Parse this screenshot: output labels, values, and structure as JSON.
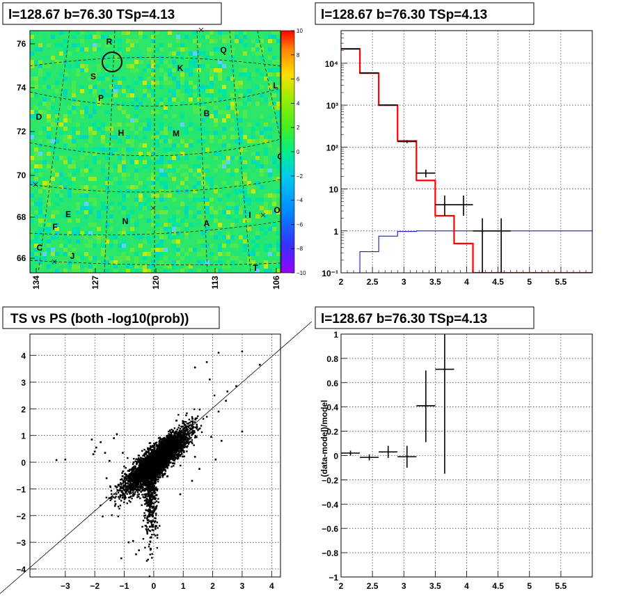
{
  "colors": {
    "hist": "#ff0000",
    "model": "#0000cc",
    "ink": "#000000"
  },
  "chart_data": [
    {
      "type": "heatmap",
      "title": "l=128.67 b=76.30 TSp=4.13",
      "xticks": [
        "134",
        "127",
        "120",
        "113",
        "106"
      ],
      "yticks": [
        "76",
        "74",
        "72",
        "70",
        "68",
        "66"
      ],
      "colorbar_ticks": [
        "10",
        "8",
        "6",
        "4",
        "2",
        "0",
        "−2",
        "−4",
        "−6",
        "−8",
        "−10"
      ],
      "zlim": [
        -10,
        10
      ],
      "source_labels": [
        "R",
        "S",
        "P",
        "K",
        "Q",
        "L",
        "D",
        "B",
        "H",
        "M",
        "G",
        "E",
        "F",
        "N",
        "A",
        "I",
        "O",
        "C",
        "J",
        "T"
      ]
    },
    {
      "type": "line",
      "title": "l=128.67 b=76.30 TSp=4.13",
      "log_y": true,
      "xlim": [
        2,
        6
      ],
      "ylim": [
        0.1,
        60000
      ],
      "xticks": [
        "2",
        "2.5",
        "3",
        "3.5",
        "4",
        "4.5",
        "5",
        "5.5"
      ],
      "yticks": [
        "10⁻¹",
        "1",
        "10",
        "10²",
        "10³",
        "10⁴"
      ],
      "series": [
        {
          "kind": "step",
          "x_edges": [
            2,
            2.3,
            2.6,
            2.9,
            3.2,
            3.5,
            3.8,
            4.1,
            4.4,
            4.7,
            6
          ],
          "values": [
            22000,
            5800,
            1000,
            140,
            16,
            2.3,
            0.5,
            0.1,
            0.1,
            0.1
          ]
        },
        {
          "kind": "step",
          "x_edges": [
            2.2,
            2.3,
            2.6,
            2.9,
            3.2,
            3.5,
            3.8,
            4.1,
            4.4,
            6
          ],
          "values": [
            0.1,
            0.32,
            0.75,
            0.97,
            1.0,
            1.0,
            1.0,
            1.0,
            1.0
          ]
        },
        {
          "kind": "errorbars",
          "points": [
            {
              "x": 2.15,
              "y": 22000,
              "dx": 0.15,
              "ylo": 21800,
              "yhi": 22200
            },
            {
              "x": 2.45,
              "y": 5900,
              "dx": 0.15,
              "ylo": 5800,
              "yhi": 6000
            },
            {
              "x": 2.75,
              "y": 1010,
              "dx": 0.15,
              "ylo": 980,
              "yhi": 1040
            },
            {
              "x": 3.05,
              "y": 135,
              "dx": 0.15,
              "ylo": 124,
              "yhi": 146
            },
            {
              "x": 3.35,
              "y": 24,
              "dx": 0.15,
              "ylo": 19,
              "yhi": 29
            },
            {
              "x": 3.65,
              "y": 4.2,
              "dx": 0.15,
              "ylo": 2.3,
              "yhi": 7
            },
            {
              "x": 3.95,
              "y": 4.2,
              "dx": 0.15,
              "ylo": 2.3,
              "yhi": 7
            },
            {
              "x": 4.25,
              "y": 1,
              "dx": 0.15,
              "ylo": 0.1,
              "yhi": 2
            },
            {
              "x": 4.55,
              "y": 1,
              "dx": 0.15,
              "ylo": 0.1,
              "yhi": 2
            }
          ]
        }
      ]
    },
    {
      "type": "scatter",
      "title": "TS vs PS (both -log10(prob))",
      "xlim": [
        -4.2,
        4.3
      ],
      "ylim": [
        -4.3,
        4.8
      ],
      "xticks": [
        "−3",
        "−2",
        "−1",
        "0",
        "1",
        "2",
        "3",
        "4"
      ],
      "yticks": [
        "4",
        "3",
        "2",
        "1",
        "0",
        "−1",
        "−2",
        "−3",
        "−4"
      ],
      "reference_line": "y = x",
      "points": [
        [
          -3.3,
          0.08
        ],
        [
          -3.0,
          0.1
        ],
        [
          -2.1,
          0.85
        ],
        [
          -1.35,
          0.9
        ],
        [
          -1.1,
          -3.6
        ],
        [
          3.0,
          4.15
        ],
        [
          2.2,
          4.1
        ],
        [
          1.8,
          3.75
        ],
        [
          1.4,
          3.55
        ],
        [
          1.9,
          3.1
        ],
        [
          2.5,
          2.65
        ],
        [
          2.8,
          2.85
        ],
        [
          3.6,
          3.65
        ],
        [
          3.0,
          1.15
        ],
        [
          2.45,
          2.3
        ],
        [
          2.2,
          1.9
        ],
        [
          -0.85,
          -3.0
        ],
        [
          -0.7,
          -2.95
        ],
        [
          -0.5,
          -3.3
        ],
        [
          -0.6,
          -3.45
        ],
        [
          -1.8,
          0.75
        ],
        [
          -1.95,
          0.55
        ],
        [
          -2.05,
          0.3
        ],
        [
          -1.5,
          0.05
        ],
        [
          -1.6,
          -0.6
        ],
        [
          -1.3,
          -0.9
        ],
        [
          1.55,
          -0.25
        ],
        [
          1.4,
          0.2
        ],
        [
          1.95,
          0.95
        ],
        [
          2.3,
          0.8
        ],
        [
          2.1,
          0.1
        ],
        [
          -1.65,
          0.35
        ],
        [
          -2.0,
          0.4
        ],
        [
          -1.25,
          1.05
        ],
        [
          -1.05,
          0.35
        ],
        [
          1.3,
          -0.7
        ],
        [
          0.9,
          -1.2
        ]
      ],
      "cluster_seed": 12345
    },
    {
      "type": "line",
      "title": "l=128.67 b=76.30 TSp=4.13",
      "ylabel": "(data-model)/model",
      "xlim": [
        2,
        6
      ],
      "ylim": [
        -1,
        1
      ],
      "xticks": [
        "2",
        "2.5",
        "3",
        "3.5",
        "4",
        "4.5",
        "5",
        "5.5"
      ],
      "yticks": [
        "1",
        "0.8",
        "0.6",
        "0.4",
        "0.2",
        "0",
        "−0.2",
        "−0.4",
        "−0.6",
        "−0.8",
        "−1"
      ],
      "series": [
        {
          "kind": "errorbars",
          "points": [
            {
              "x": 2.15,
              "y": 0.02,
              "dx": 0.15,
              "ylo": 0.0,
              "yhi": 0.04
            },
            {
              "x": 2.45,
              "y": -0.015,
              "dx": 0.15,
              "ylo": -0.04,
              "yhi": 0.01
            },
            {
              "x": 2.75,
              "y": 0.03,
              "dx": 0.15,
              "ylo": -0.02,
              "yhi": 0.08
            },
            {
              "x": 3.05,
              "y": -0.01,
              "dx": 0.15,
              "ylo": -0.1,
              "yhi": 0.08
            },
            {
              "x": 3.35,
              "y": 0.41,
              "dx": 0.15,
              "ylo": 0.11,
              "yhi": 0.7
            },
            {
              "x": 3.65,
              "y": 0.71,
              "dx": 0.15,
              "ylo": -0.15,
              "yhi": 1.0
            }
          ]
        }
      ]
    }
  ]
}
